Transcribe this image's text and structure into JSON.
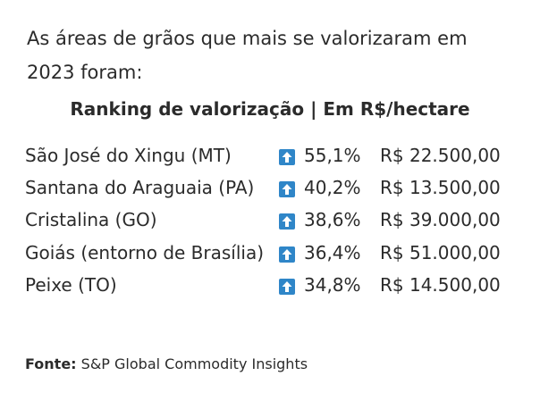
{
  "intro": "As áreas de grãos que mais se valorizaram em 2023 foram:",
  "table": {
    "title": "Ranking de valorização | Em R$/hectare",
    "rows": [
      [
        "São José do Xingu (MT)",
        "55,1%",
        "R$ 22.500,00"
      ],
      [
        "Santana do Araguaia (PA)",
        "40,2%",
        "R$ 13.500,00"
      ],
      [
        "Cristalina (GO)",
        "38,6%",
        "R$ 39.000,00"
      ],
      [
        "Goiás (entorno de Brasília)",
        "36,4%",
        "R$ 51.000,00"
      ],
      [
        "Peixe (TO)",
        "34,8%",
        "R$ 14.500,00"
      ]
    ]
  },
  "source": {
    "label": "Fonte:",
    "text": "S&P Global Commodity Insights"
  }
}
